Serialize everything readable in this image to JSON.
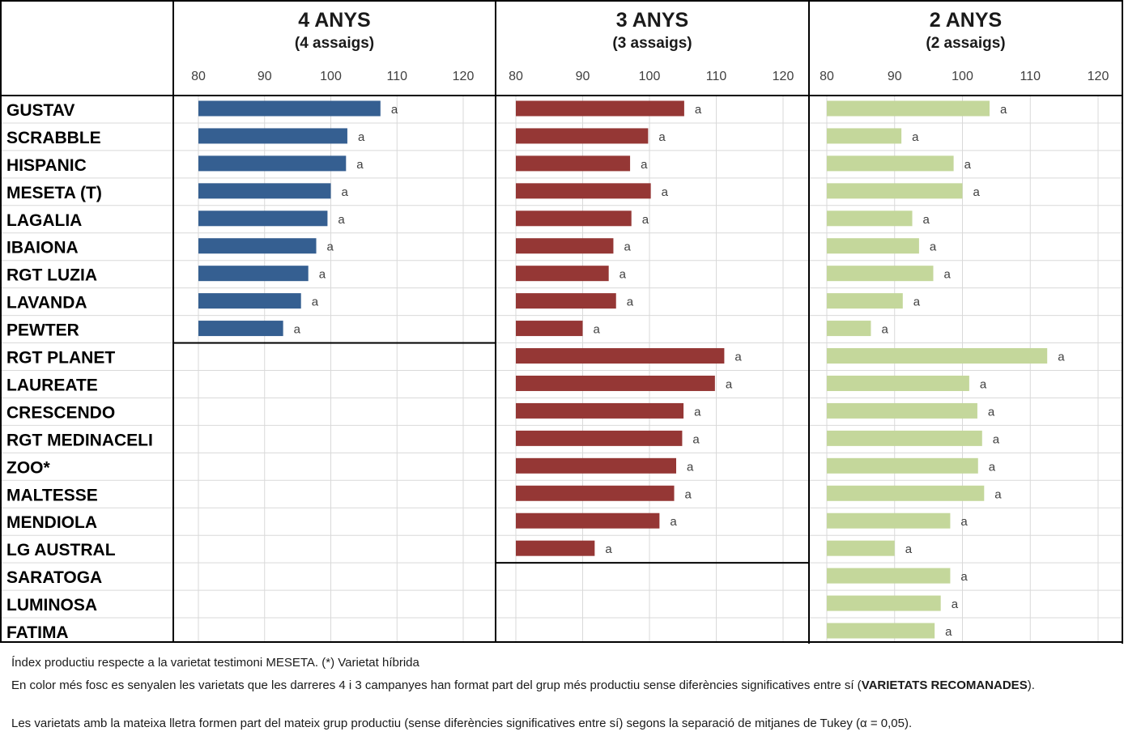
{
  "chart_data": {
    "type": "bar",
    "orientation": "horizontal",
    "categories": [
      "GUSTAV",
      "SCRABBLE",
      "HISPANIC",
      "MESETA (T)",
      "LAGALIA",
      "IBAIONA",
      "RGT LUZIA",
      "LAVANDA",
      "PEWTER",
      "RGT PLANET",
      "LAUREATE",
      "CRESCENDO",
      "RGT MEDINACELI",
      "ZOO*",
      "MALTESSE",
      "MENDIOLA",
      "LG AUSTRAL",
      "SARATOGA",
      "LUMINOSA",
      "FATIMA"
    ],
    "panels": [
      {
        "title": "4 ANYS",
        "subtitle": "(4 assaigs)",
        "color": "#355f91",
        "xlim": [
          80,
          123
        ],
        "ticks": [
          80,
          90,
          100,
          110,
          120
        ],
        "values": [
          107.5,
          102.5,
          102.3,
          100.0,
          99.5,
          97.8,
          96.6,
          95.5,
          92.8,
          null,
          null,
          null,
          null,
          null,
          null,
          null,
          null,
          null,
          null,
          null
        ],
        "labels": [
          "a",
          "a",
          "a",
          "a",
          "a",
          "a",
          "a",
          "a",
          "a",
          "",
          "",
          "",
          "",
          "",
          "",
          "",
          "",
          "",
          "",
          ""
        ]
      },
      {
        "title": "3 ANYS",
        "subtitle": "(3 assaigs)",
        "color": "#953735",
        "xlim": [
          80,
          123
        ],
        "ticks": [
          80,
          90,
          100,
          110,
          120
        ],
        "values": [
          105.2,
          99.8,
          97.1,
          100.2,
          97.3,
          94.6,
          93.9,
          95.0,
          90.0,
          111.2,
          109.8,
          105.1,
          104.9,
          104.0,
          103.7,
          101.5,
          91.8,
          null,
          null,
          null
        ],
        "labels": [
          "a",
          "a",
          "a",
          "a",
          "a",
          "a",
          "a",
          "a",
          "a",
          "a",
          "a",
          "a",
          "a",
          "a",
          "a",
          "a",
          "a",
          "",
          "",
          ""
        ]
      },
      {
        "title": "2 ANYS",
        "subtitle": "(2 assaigs)",
        "color": "#c4d79b",
        "xlim": [
          80,
          123
        ],
        "ticks": [
          80,
          90,
          100,
          110,
          120
        ],
        "values": [
          104.0,
          91.0,
          98.7,
          100.0,
          92.6,
          93.6,
          95.7,
          91.2,
          86.5,
          112.5,
          101.0,
          102.2,
          102.9,
          102.3,
          103.2,
          98.2,
          90.0,
          98.2,
          96.8,
          95.9
        ],
        "labels": [
          "a",
          "a",
          "a",
          "a",
          "a",
          "a",
          "a",
          "a",
          "a",
          "a",
          "a",
          "a",
          "a",
          "a",
          "a",
          "a",
          "a",
          "a",
          "a",
          "a"
        ]
      }
    ]
  },
  "notes": {
    "line1": "Índex productiu respecte a la varietat testimoni MESETA. (*) Varietat híbrida",
    "line2_text": "En color més fosc es senyalen les varietats que les darreres 4 i 3 campanyes han format part del grup més productiu sense diferències significatives entre sí (",
    "line2_bold": "VARIETATS RECOMANADES",
    "line2_end": ").",
    "line3": "Les varietats amb la mateixa lletra formen part del mateix grup productiu (sense diferències significatives entre sí) segons la separació de mitjanes de Tukey (α = 0,05)."
  }
}
